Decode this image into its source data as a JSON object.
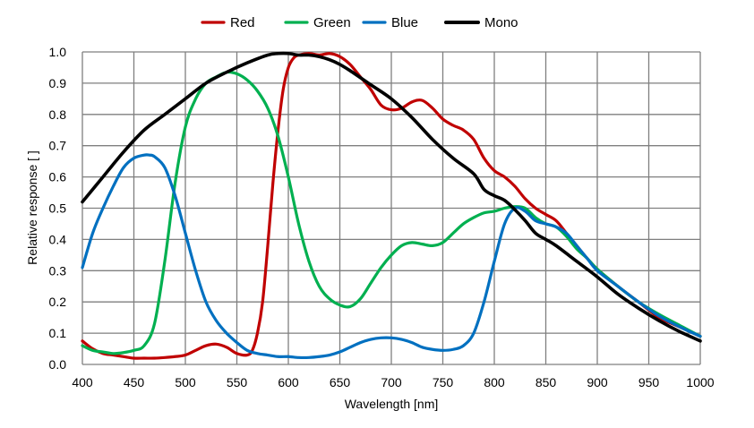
{
  "chart_data": {
    "type": "line",
    "title": "",
    "xlabel": "Wavelength [nm]",
    "ylabel": "Relative response [ ]",
    "xlim": [
      400,
      1000
    ],
    "ylim": [
      0,
      1.0
    ],
    "xticks": [
      "400",
      "450",
      "500",
      "550",
      "600",
      "650",
      "700",
      "750",
      "800",
      "850",
      "900",
      "950",
      "1000"
    ],
    "yticks": [
      "0.0",
      "0.1",
      "0.2",
      "0.3",
      "0.4",
      "0.5",
      "0.6",
      "0.7",
      "0.8",
      "0.9",
      "1.0"
    ],
    "grid": true,
    "legend_position": "top",
    "series": [
      {
        "name": "Red",
        "color": "#c00000",
        "x": [
          400,
          410,
          420,
          430,
          440,
          450,
          460,
          470,
          480,
          490,
          500,
          510,
          520,
          530,
          540,
          550,
          560,
          565,
          570,
          575,
          580,
          585,
          590,
          595,
          600,
          605,
          610,
          620,
          630,
          640,
          650,
          660,
          670,
          680,
          690,
          700,
          710,
          720,
          730,
          740,
          750,
          760,
          770,
          780,
          790,
          800,
          810,
          820,
          830,
          840,
          850,
          860,
          870,
          880,
          890,
          900,
          920,
          940,
          960,
          980,
          1000
        ],
        "y": [
          0.075,
          0.05,
          0.035,
          0.03,
          0.025,
          0.02,
          0.02,
          0.02,
          0.022,
          0.025,
          0.03,
          0.045,
          0.06,
          0.065,
          0.055,
          0.035,
          0.03,
          0.045,
          0.1,
          0.2,
          0.38,
          0.58,
          0.75,
          0.88,
          0.95,
          0.98,
          0.99,
          0.995,
          0.99,
          0.995,
          0.985,
          0.96,
          0.92,
          0.88,
          0.83,
          0.815,
          0.82,
          0.84,
          0.845,
          0.82,
          0.785,
          0.765,
          0.75,
          0.72,
          0.66,
          0.62,
          0.6,
          0.57,
          0.53,
          0.5,
          0.48,
          0.46,
          0.42,
          0.38,
          0.34,
          0.305,
          0.25,
          0.2,
          0.15,
          0.12,
          0.09
        ]
      },
      {
        "name": "Green",
        "color": "#00b050",
        "x": [
          400,
          410,
          420,
          430,
          440,
          450,
          460,
          470,
          480,
          490,
          500,
          510,
          520,
          530,
          540,
          550,
          560,
          570,
          580,
          590,
          600,
          610,
          620,
          630,
          640,
          650,
          660,
          670,
          680,
          690,
          700,
          710,
          720,
          730,
          740,
          750,
          760,
          770,
          780,
          790,
          800,
          810,
          820,
          830,
          840,
          850,
          860,
          870,
          880,
          890,
          900,
          920,
          940,
          960,
          980,
          1000
        ],
        "y": [
          0.06,
          0.045,
          0.04,
          0.035,
          0.038,
          0.045,
          0.06,
          0.13,
          0.33,
          0.58,
          0.76,
          0.85,
          0.9,
          0.92,
          0.935,
          0.93,
          0.91,
          0.875,
          0.82,
          0.73,
          0.6,
          0.45,
          0.33,
          0.25,
          0.21,
          0.19,
          0.185,
          0.21,
          0.26,
          0.31,
          0.35,
          0.38,
          0.39,
          0.385,
          0.38,
          0.39,
          0.42,
          0.45,
          0.47,
          0.485,
          0.49,
          0.5,
          0.505,
          0.5,
          0.47,
          0.45,
          0.44,
          0.41,
          0.37,
          0.34,
          0.305,
          0.25,
          0.2,
          0.16,
          0.125,
          0.09
        ]
      },
      {
        "name": "Blue",
        "color": "#0070c0",
        "x": [
          400,
          410,
          420,
          430,
          440,
          450,
          460,
          465,
          470,
          480,
          490,
          500,
          510,
          520,
          530,
          540,
          550,
          560,
          570,
          580,
          590,
          600,
          610,
          620,
          630,
          640,
          650,
          660,
          670,
          680,
          690,
          700,
          710,
          720,
          730,
          740,
          750,
          760,
          770,
          780,
          790,
          800,
          810,
          820,
          830,
          840,
          850,
          860,
          870,
          880,
          890,
          900,
          920,
          940,
          960,
          980,
          1000
        ],
        "y": [
          0.31,
          0.42,
          0.5,
          0.57,
          0.63,
          0.66,
          0.67,
          0.67,
          0.665,
          0.63,
          0.54,
          0.42,
          0.3,
          0.2,
          0.14,
          0.1,
          0.07,
          0.045,
          0.035,
          0.03,
          0.025,
          0.025,
          0.022,
          0.022,
          0.025,
          0.03,
          0.04,
          0.055,
          0.07,
          0.08,
          0.085,
          0.085,
          0.08,
          0.07,
          0.055,
          0.048,
          0.045,
          0.048,
          0.06,
          0.1,
          0.2,
          0.33,
          0.45,
          0.5,
          0.49,
          0.46,
          0.45,
          0.44,
          0.42,
          0.38,
          0.34,
          0.3,
          0.25,
          0.2,
          0.155,
          0.12,
          0.09
        ]
      },
      {
        "name": "Mono",
        "color": "#000000",
        "x": [
          400,
          420,
          440,
          460,
          480,
          500,
          520,
          540,
          560,
          580,
          590,
          600,
          610,
          620,
          630,
          640,
          650,
          660,
          680,
          700,
          720,
          740,
          760,
          780,
          790,
          800,
          810,
          820,
          830,
          840,
          850,
          860,
          880,
          900,
          920,
          940,
          960,
          980,
          1000
        ],
        "y": [
          0.52,
          0.6,
          0.68,
          0.75,
          0.8,
          0.85,
          0.9,
          0.935,
          0.965,
          0.99,
          0.995,
          0.995,
          0.99,
          0.99,
          0.985,
          0.975,
          0.96,
          0.94,
          0.895,
          0.85,
          0.79,
          0.72,
          0.66,
          0.61,
          0.56,
          0.54,
          0.525,
          0.495,
          0.46,
          0.42,
          0.4,
          0.38,
          0.33,
          0.28,
          0.225,
          0.18,
          0.14,
          0.105,
          0.075
        ]
      }
    ]
  }
}
